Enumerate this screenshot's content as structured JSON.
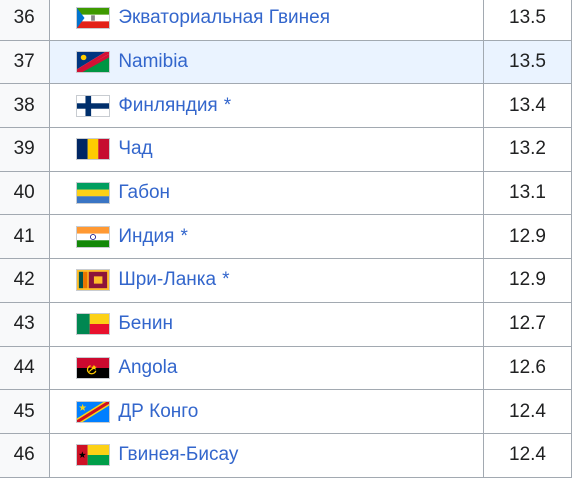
{
  "table": {
    "rows": [
      {
        "rank": "36",
        "country": "Экваториальная Гвинея",
        "marker": "",
        "value": "13.5",
        "flag": "equatorial-guinea-flag-icon"
      },
      {
        "rank": "37",
        "country": "Namibia",
        "marker": "",
        "value": "13.5",
        "flag": "namibia-flag-icon"
      },
      {
        "rank": "38",
        "country": "Финляндия",
        "marker": "*",
        "value": "13.4",
        "flag": "finland-flag-icon"
      },
      {
        "rank": "39",
        "country": "Чад",
        "marker": "",
        "value": "13.2",
        "flag": "chad-flag-icon"
      },
      {
        "rank": "40",
        "country": "Габон",
        "marker": "",
        "value": "13.1",
        "flag": "gabon-flag-icon"
      },
      {
        "rank": "41",
        "country": "Индия",
        "marker": "*",
        "value": "12.9",
        "flag": "india-flag-icon"
      },
      {
        "rank": "42",
        "country": "Шри-Ланка",
        "marker": "*",
        "value": "12.9",
        "flag": "sri-lanka-flag-icon"
      },
      {
        "rank": "43",
        "country": "Бенин",
        "marker": "",
        "value": "12.7",
        "flag": "benin-flag-icon"
      },
      {
        "rank": "44",
        "country": "Angola",
        "marker": "",
        "value": "12.6",
        "flag": "angola-flag-icon"
      },
      {
        "rank": "45",
        "country": "ДР Конго",
        "marker": "",
        "value": "12.4",
        "flag": "dr-congo-flag-icon"
      },
      {
        "rank": "46",
        "country": "Гвинея-Бисау",
        "marker": "",
        "value": "12.4",
        "flag": "guinea-bissau-flag-icon"
      }
    ]
  },
  "colors": {
    "link": "#3366cc",
    "highlight_row": "#eaf3ff",
    "rank_cell": "#f8f9fa",
    "border": "#a2a9b1"
  }
}
